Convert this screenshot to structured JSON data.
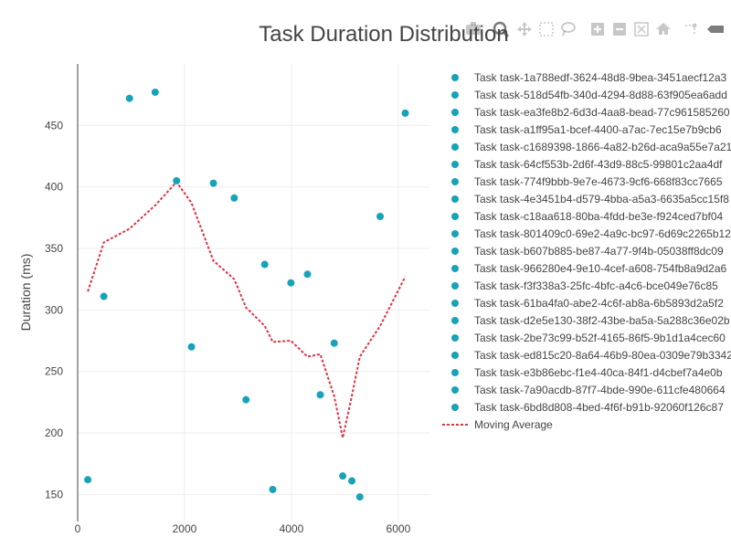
{
  "chart_data": {
    "type": "scatter",
    "title": "Task Duration Distribution",
    "xlabel": "",
    "ylabel": "Duration (ms)",
    "xlim": [
      0,
      6600
    ],
    "ylim": [
      128,
      500
    ],
    "xticks": [
      0,
      2000,
      4000,
      6000
    ],
    "yticks": [
      150,
      200,
      250,
      300,
      350,
      400,
      450
    ],
    "colors": {
      "points": "#17a2b8",
      "moving_average": "#dc3545",
      "axis": "#444444",
      "grid": "#eeeeee"
    },
    "legend_position": "right",
    "series": [
      {
        "name": "Task task-1a788edf-3624-48d8-9bea-3451aecf12a3",
        "x": 190,
        "y": 162
      },
      {
        "name": "Task task-518d54fb-340d-4294-8d88-63f905ea6add",
        "x": 490,
        "y": 311
      },
      {
        "name": "Task task-ea3fe8b2-6d3d-4aa8-bead-77c961585260",
        "x": 970,
        "y": 472
      },
      {
        "name": "Task task-a1ff95a1-bcef-4400-a7ac-7ec15e7b9cb6",
        "x": 1450,
        "y": 477
      },
      {
        "name": "Task task-c1689398-1866-4a82-b26d-aca9a55e7a21",
        "x": 1850,
        "y": 405
      },
      {
        "name": "Task task-64cf553b-2d6f-43d9-88c5-99801c2aa4df",
        "x": 2130,
        "y": 270
      },
      {
        "name": "Task task-774f9bbb-9e7e-4673-9cf6-668f83cc7665",
        "x": 2540,
        "y": 403
      },
      {
        "name": "Task task-4e3451b4-d579-4bba-a5a3-6635a5cc15f8",
        "x": 2930,
        "y": 391
      },
      {
        "name": "Task task-c18aa618-80ba-4fdd-be3e-f924ced7bf04",
        "x": 3150,
        "y": 227
      },
      {
        "name": "Task task-801409c0-69e2-4a9c-bc97-6d69c2265b12",
        "x": 3500,
        "y": 337
      },
      {
        "name": "Task task-b607b885-be87-4a77-9f4b-05038ff8dc09",
        "x": 3650,
        "y": 154
      },
      {
        "name": "Task task-966280e4-9e10-4cef-a608-754fb8a9d2a6",
        "x": 3990,
        "y": 322
      },
      {
        "name": "Task task-f3f338a3-25fc-4bfc-a4c6-bce049e76c85",
        "x": 4300,
        "y": 329
      },
      {
        "name": "Task task-61ba4fa0-abe2-4c6f-ab8a-6b5893d2a5f2",
        "x": 4540,
        "y": 231
      },
      {
        "name": "Task task-d2e5e130-38f2-43be-ba5a-5a288c36e02b",
        "x": 4800,
        "y": 273
      },
      {
        "name": "Task task-2be73c99-b52f-4165-86f5-9b1d1a4cec60",
        "x": 4960,
        "y": 165
      },
      {
        "name": "Task task-ed815c20-8a64-46b9-80ea-0309e79b3342",
        "x": 5130,
        "y": 161
      },
      {
        "name": "Task task-e3b86ebc-f1e4-40ca-84f1-d4cbef7a4e0b",
        "x": 5280,
        "y": 148
      },
      {
        "name": "Task task-7a90acdb-87f7-4bde-990e-611cfe480664",
        "x": 5660,
        "y": 376
      },
      {
        "name": "Task task-6bd8d808-4bed-4f6f-b91b-92060f126c87",
        "x": 6130,
        "y": 460
      }
    ],
    "moving_average": {
      "name": "Moving Average",
      "x": [
        190,
        490,
        970,
        1450,
        1850,
        2130,
        2540,
        2930,
        3150,
        3500,
        3650,
        3990,
        4300,
        4540,
        4800,
        4960,
        5130,
        5280,
        5660,
        6130
      ],
      "y": [
        315,
        355,
        366,
        385,
        404,
        387,
        340,
        325,
        302,
        287,
        274,
        275,
        262,
        264,
        230,
        196,
        230,
        262,
        287,
        327
      ]
    }
  },
  "modebar": {
    "icons": [
      "camera-icon",
      "zoom-icon",
      "pan-icon",
      "box-select-icon",
      "lasso-icon",
      "zoom-in-icon",
      "zoom-out-icon",
      "autoscale-icon",
      "reset-axes-icon",
      "spike-lines-icon",
      "hover-icon"
    ]
  }
}
